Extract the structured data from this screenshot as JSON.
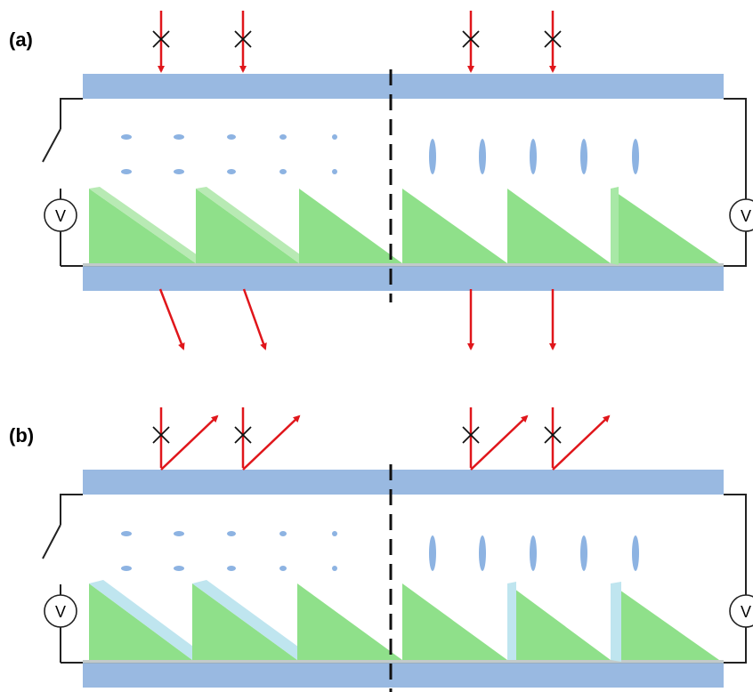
{
  "panels": [
    {
      "label": "(a)",
      "voltmeter_left": "V",
      "voltmeter_right": "V",
      "left_switch": "open",
      "right_switch": "closed",
      "incident_blocked_marks": 4,
      "reflected_beams": false,
      "transmitted": [
        "deflected",
        "deflected",
        "straight",
        "straight"
      ]
    },
    {
      "label": "(b)",
      "voltmeter_left": "V",
      "voltmeter_right": "V",
      "left_switch": "open",
      "right_switch": "closed",
      "incident_blocked_marks": 4,
      "reflected_beams": true,
      "transmitted": []
    }
  ],
  "colors": {
    "substrate": "#99b9e1",
    "prism": "#8fe08a",
    "liquid_crystal": "#8db3e2",
    "beam": "#e0161b",
    "divider": "#111111",
    "circuit": "#222222"
  }
}
